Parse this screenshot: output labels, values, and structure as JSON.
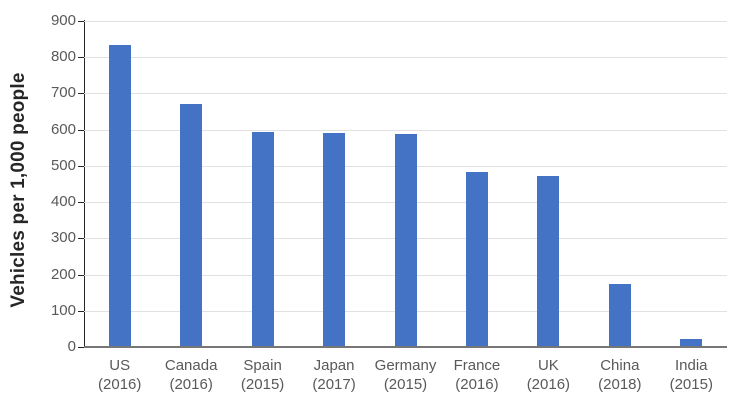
{
  "chart_data": {
    "type": "bar",
    "title": "",
    "xlabel": "",
    "ylabel": "Vehicles per 1,000 people",
    "categories": [
      "US",
      "Canada",
      "Spain",
      "Japan",
      "Germany",
      "France",
      "UK",
      "China",
      "India"
    ],
    "year_labels": [
      "(2016)",
      "(2016)",
      "(2015)",
      "(2017)",
      "(2015)",
      "(2016)",
      "(2016)",
      "(2018)",
      "(2015)"
    ],
    "values": [
      835,
      670,
      593,
      591,
      589,
      482,
      471,
      173,
      22
    ],
    "ylim": [
      0,
      900
    ],
    "yticks": [
      0,
      100,
      200,
      300,
      400,
      500,
      600,
      700,
      800,
      900
    ],
    "grid": "horizontal",
    "legend": "none",
    "bar_color": "#4472C4",
    "gridline_color": "#E1E1E1",
    "axis_line_color": "#262626",
    "baseline_color": "#767676",
    "tick_label_color": "#595959",
    "x_label_color": "#595959",
    "axis_title_color": "#262626"
  }
}
